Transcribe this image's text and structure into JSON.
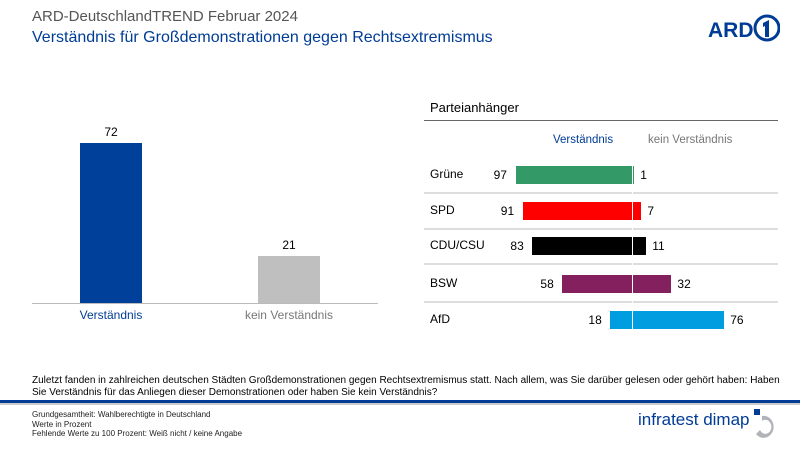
{
  "header": {
    "title": "ARD-DeutschlandTREND Februar 2024",
    "subtitle": "Verständnis für Großdemonstrationen gegen Rechtsextremismus",
    "logo": "ARD"
  },
  "colors": {
    "accent": "#003c96",
    "verstaendnis": "#00409a",
    "kein": "#bfbfbf"
  },
  "chart_data": [
    {
      "type": "bar",
      "categories": [
        "Verständnis",
        "kein Verständnis"
      ],
      "values": [
        72,
        21
      ],
      "colors": [
        "#00409a",
        "#bfbfbf"
      ],
      "ylim": [
        0,
        100
      ]
    },
    {
      "type": "bar",
      "orientation": "diverging-horizontal",
      "title": "Parteianhänger",
      "legend": [
        "Verständnis",
        "kein Verständnis"
      ],
      "categories": [
        "Grüne",
        "SPD",
        "CDU/CSU",
        "BSW",
        "AfD"
      ],
      "series": [
        {
          "name": "Verständnis",
          "values": [
            97,
            91,
            83,
            58,
            18
          ]
        },
        {
          "name": "kein Verständnis",
          "values": [
            1,
            7,
            11,
            32,
            76
          ]
        }
      ],
      "colors": [
        "#339966",
        "#ff0000",
        "#000000",
        "#85205f",
        "#009ee0"
      ]
    }
  ],
  "footer": {
    "question": "Zuletzt fanden in zahlreichen deutschen Städten Großdemonstrationen gegen Rechtsextremismus statt. Nach allem, was Sie darüber gelesen oder gehört haben: Haben Sie Verständnis für das Anliegen dieser Demonstrationen oder haben Sie kein Verständnis?",
    "notes": [
      "Grundgesamtheit: Wahlberechtigte in Deutschland",
      "Werte in Prozent",
      "Fehlende Werte zu 100 Prozent: Weiß nicht / keine Angabe"
    ],
    "brand": "infratest dimap"
  }
}
